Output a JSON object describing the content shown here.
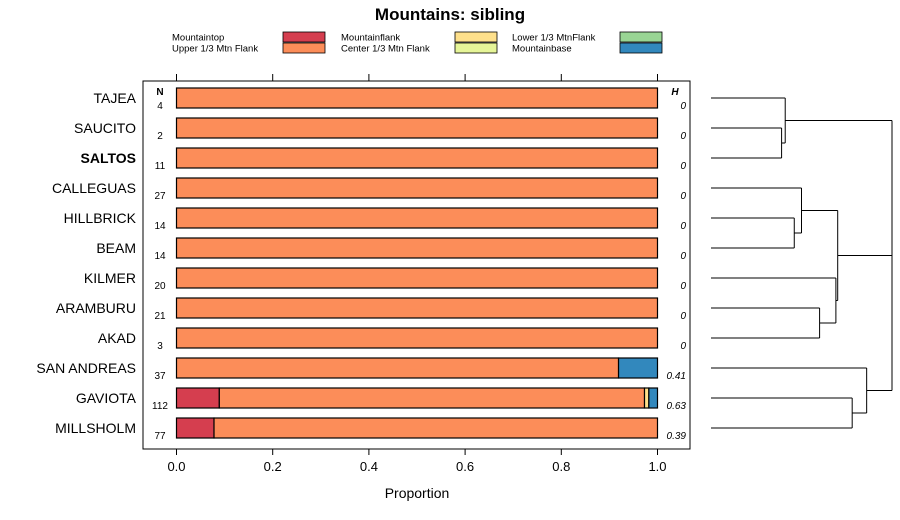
{
  "chart_data": {
    "type": "stacked-bar",
    "title": "Mountains: sibling",
    "xlabel": "Proportion",
    "xlim": [
      0,
      1
    ],
    "xticks": [
      "0.0",
      "0.2",
      "0.4",
      "0.6",
      "0.8",
      "1.0"
    ],
    "n_header": "N",
    "h_header": "H",
    "legend": [
      {
        "name": "Mountaintop",
        "color": "#d53e4f"
      },
      {
        "name": "Upper 1/3 Mtn Flank",
        "color": "#fc8d59"
      },
      {
        "name": "Mountainflank",
        "color": "#fee08b"
      },
      {
        "name": "Center 1/3 Mtn Flank",
        "color": "#e6f598"
      },
      {
        "name": "Lower 1/3 MtnFlank",
        "color": "#99d594"
      },
      {
        "name": "Mountainbase",
        "color": "#3288bd"
      }
    ],
    "rows": [
      {
        "label": "TAJEA",
        "bold": false,
        "n": "4",
        "h": "0",
        "segments": [
          0,
          1,
          0,
          0,
          0,
          0
        ]
      },
      {
        "label": "SAUCITO",
        "bold": false,
        "n": "2",
        "h": "0",
        "segments": [
          0,
          1,
          0,
          0,
          0,
          0
        ]
      },
      {
        "label": "SALTOS",
        "bold": true,
        "n": "11",
        "h": "0",
        "segments": [
          0,
          1,
          0,
          0,
          0,
          0
        ]
      },
      {
        "label": "CALLEGUAS",
        "bold": false,
        "n": "27",
        "h": "0",
        "segments": [
          0,
          1,
          0,
          0,
          0,
          0
        ]
      },
      {
        "label": "HILLBRICK",
        "bold": false,
        "n": "14",
        "h": "0",
        "segments": [
          0,
          1,
          0,
          0,
          0,
          0
        ]
      },
      {
        "label": "BEAM",
        "bold": false,
        "n": "14",
        "h": "0",
        "segments": [
          0,
          1,
          0,
          0,
          0,
          0
        ]
      },
      {
        "label": "KILMER",
        "bold": false,
        "n": "20",
        "h": "0",
        "segments": [
          0,
          1,
          0,
          0,
          0,
          0
        ]
      },
      {
        "label": "ARAMBURU",
        "bold": false,
        "n": "21",
        "h": "0",
        "segments": [
          0,
          1,
          0,
          0,
          0,
          0
        ]
      },
      {
        "label": "AKAD",
        "bold": false,
        "n": "3",
        "h": "0",
        "segments": [
          0,
          1,
          0,
          0,
          0,
          0
        ]
      },
      {
        "label": "SAN ANDREAS",
        "bold": false,
        "n": "37",
        "h": "0.41",
        "segments": [
          0,
          0.919,
          0,
          0,
          0,
          0.081
        ]
      },
      {
        "label": "GAVIOTA",
        "bold": false,
        "n": "112",
        "h": "0.63",
        "segments": [
          0.089,
          0.884,
          0.009,
          0,
          0,
          0.018
        ]
      },
      {
        "label": "MILLSHOLM",
        "bold": false,
        "n": "77",
        "h": "0.39",
        "segments": [
          0.078,
          0.922,
          0,
          0,
          0,
          0
        ]
      }
    ],
    "dendrogram": {
      "heights": [
        0.39,
        0.41,
        0.46,
        0.5,
        0.6,
        0.69,
        0.7,
        0.78,
        0.86,
        1.0
      ],
      "merges": [
        [
          0,
          "r1",
          "r2"
        ],
        [
          1,
          "r0",
          "m0"
        ],
        [
          2,
          "r4",
          "r5"
        ],
        [
          3,
          "r3",
          "m2"
        ],
        [
          4,
          "r7",
          "r8"
        ],
        [
          5,
          "r6",
          "m4"
        ],
        [
          6,
          "m3",
          "m5"
        ],
        [
          7,
          "r10",
          "r11"
        ],
        [
          8,
          "r9",
          "m7"
        ],
        [
          9,
          "m1",
          "m6"
        ]
      ],
      "root_merge": [
        9,
        "m8",
        "m9"
      ]
    }
  }
}
